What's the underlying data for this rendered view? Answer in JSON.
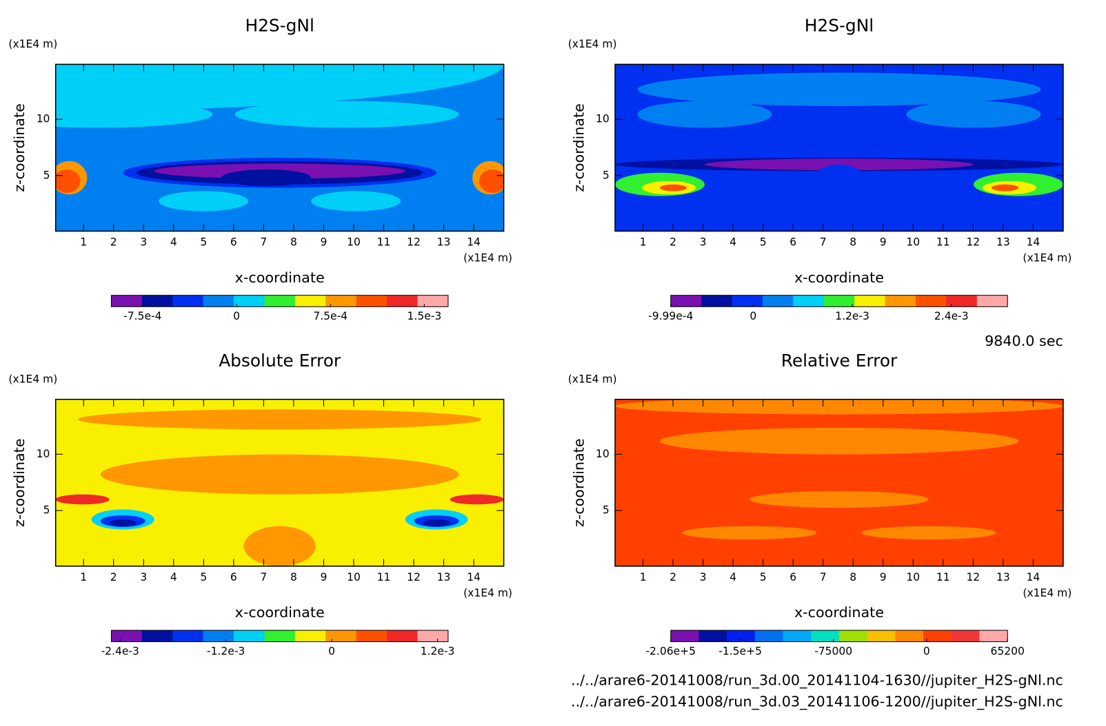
{
  "chart_data": [
    {
      "type": "contour",
      "title": "H2S-gNl",
      "xlabel": "x-coordinate",
      "ylabel": "z-coordinate",
      "x_unit": "(x1E4 m)",
      "y_unit": "(x1E4 m)",
      "xlim": [
        0.07,
        15
      ],
      "xticks": [
        1,
        2,
        3,
        4,
        5,
        6,
        7,
        8,
        9,
        10,
        11,
        12,
        13,
        14
      ],
      "ylim": [
        0.06,
        14.87
      ],
      "yticks": [
        5,
        10
      ],
      "colorbar": {
        "lim": [
          -0.001,
          0.00169
        ],
        "colors": [
          "#7a10b0",
          "#0010a0",
          "#0030f0",
          "#0080f0",
          "#00d0f8",
          "#30f030",
          "#f8f000",
          "#ff9800",
          "#ff5000",
          "#f02828",
          "#ffa8a8"
        ],
        "ticks": [
          {
            "value": -0.00075,
            "label": "-7.5e-4"
          },
          0,
          {
            "value": 0.00075,
            "label": "7.5e-4"
          },
          {
            "value": 0.0015,
            "label": "1.5e-3"
          }
        ]
      }
    },
    {
      "type": "contour",
      "title": "H2S-gNl",
      "xlabel": "x-coordinate",
      "ylabel": "z-coordinate",
      "x_unit": "(x1E4 m)",
      "y_unit": "(x1E4 m)",
      "xlim": [
        0.07,
        15
      ],
      "xticks": [
        1,
        2,
        3,
        4,
        5,
        6,
        7,
        8,
        9,
        10,
        11,
        12,
        13,
        14
      ],
      "ylim": [
        0.06,
        14.87
      ],
      "yticks": [
        5,
        10
      ],
      "colorbar": {
        "lim": [
          -0.000999,
          0.00308
        ],
        "colors": [
          "#7a10b0",
          "#0010a0",
          "#0030f0",
          "#0080f0",
          "#00d0f8",
          "#30f030",
          "#f8f000",
          "#ff9800",
          "#ff5000",
          "#f02828",
          "#ffa8a8"
        ],
        "ticks": [
          {
            "value": -0.000999,
            "label": "-9.99e-4"
          },
          0,
          {
            "value": 0.0012,
            "label": "1.2e-3"
          },
          {
            "value": 0.0024,
            "label": "2.4e-3"
          }
        ]
      }
    },
    {
      "type": "contour",
      "title": "Absolute Error",
      "xlabel": "x-coordinate",
      "ylabel": "z-coordinate",
      "x_unit": "(x1E4 m)",
      "y_unit": "(x1E4 m)",
      "xlim": [
        0.07,
        15
      ],
      "xticks": [
        1,
        2,
        3,
        4,
        5,
        6,
        7,
        8,
        9,
        10,
        11,
        12,
        13,
        14
      ],
      "ylim": [
        0.06,
        14.87
      ],
      "yticks": [
        5,
        10
      ],
      "colorbar": {
        "lim": [
          -0.0025,
          0.00132
        ],
        "colors": [
          "#7a10b0",
          "#0010a0",
          "#0030f0",
          "#0080f0",
          "#00d0f8",
          "#30f030",
          "#f8f000",
          "#ff9800",
          "#ff5000",
          "#f02828",
          "#ffa8a8"
        ],
        "ticks": [
          {
            "value": -0.0024,
            "label": "-2.4e-3"
          },
          {
            "value": -0.0012,
            "label": "-1.2e-3"
          },
          0,
          {
            "value": 0.0012,
            "label": "1.2e-3"
          }
        ]
      }
    },
    {
      "type": "contour",
      "title": "Relative Error",
      "xlabel": "x-coordinate",
      "ylabel": "z-coordinate",
      "x_unit": "(x1E4 m)",
      "y_unit": "(x1E4 m)",
      "xlim": [
        0.07,
        15
      ],
      "xticks": [
        1,
        2,
        3,
        4,
        5,
        6,
        7,
        8,
        9,
        10,
        11,
        12,
        13,
        14
      ],
      "ylim": [
        0.06,
        14.87
      ],
      "yticks": [
        5,
        10
      ],
      "colorbar": {
        "lim": [
          -206000,
          65200
        ],
        "colors": [
          "#7a10b0",
          "#0010a0",
          "#0020f0",
          "#0070f0",
          "#00a8f8",
          "#00e0c0",
          "#a0e000",
          "#f8c000",
          "#ff8800",
          "#ff4000",
          "#f03838",
          "#ffa8a8"
        ],
        "ticks": [
          {
            "value": -206000,
            "label": "-2.06e+5"
          },
          {
            "value": -150000,
            "label": "-1.5e+5"
          },
          -75000,
          0,
          65200
        ]
      }
    }
  ],
  "time": "9840.0 sec",
  "files": [
    "../../arare6-20141008/run_3d.00_20141104-1630//jupiter_H2S-gNl.nc",
    "../../arare6-20141008/run_3d.03_20141106-1200//jupiter_H2S-gNl.nc"
  ]
}
